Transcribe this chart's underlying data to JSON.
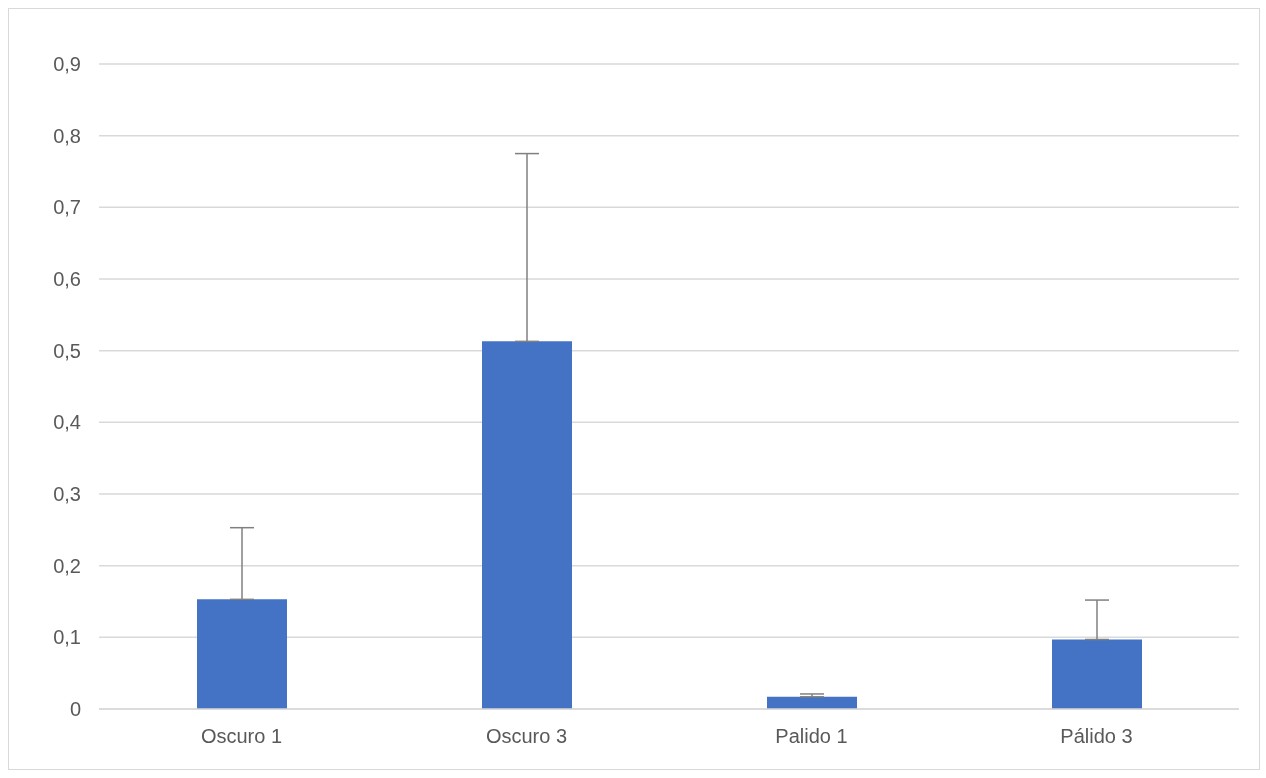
{
  "chart_data": {
    "type": "bar",
    "categories": [
      "Oscuro 1",
      "Oscuro 3",
      "Palido 1",
      "Pálido 3"
    ],
    "values": [
      0.153,
      0.513,
      0.017,
      0.097
    ],
    "color": "#4472c4",
    "errors": [
      [
        0.153,
        0.253
      ],
      [
        0.513,
        0.775
      ],
      [
        0.017,
        0.021
      ],
      [
        0.097,
        0.152
      ]
    ],
    "ylim": [
      0,
      0.9
    ],
    "yticks": [
      0,
      {
        "value": 0.1,
        "label": "0,1"
      },
      {
        "value": 0.2,
        "label": "0,2"
      },
      {
        "value": 0.3,
        "label": "0,3"
      },
      {
        "value": 0.4,
        "label": "0,4"
      },
      {
        "value": 0.5,
        "label": "0,5"
      },
      {
        "value": 0.6,
        "label": "0,6"
      },
      {
        "value": 0.7,
        "label": "0,7"
      },
      {
        "value": 0.8,
        "label": "0,8"
      },
      {
        "value": 0.9,
        "label": "0,9"
      }
    ],
    "grid": "y",
    "legend": false
  }
}
